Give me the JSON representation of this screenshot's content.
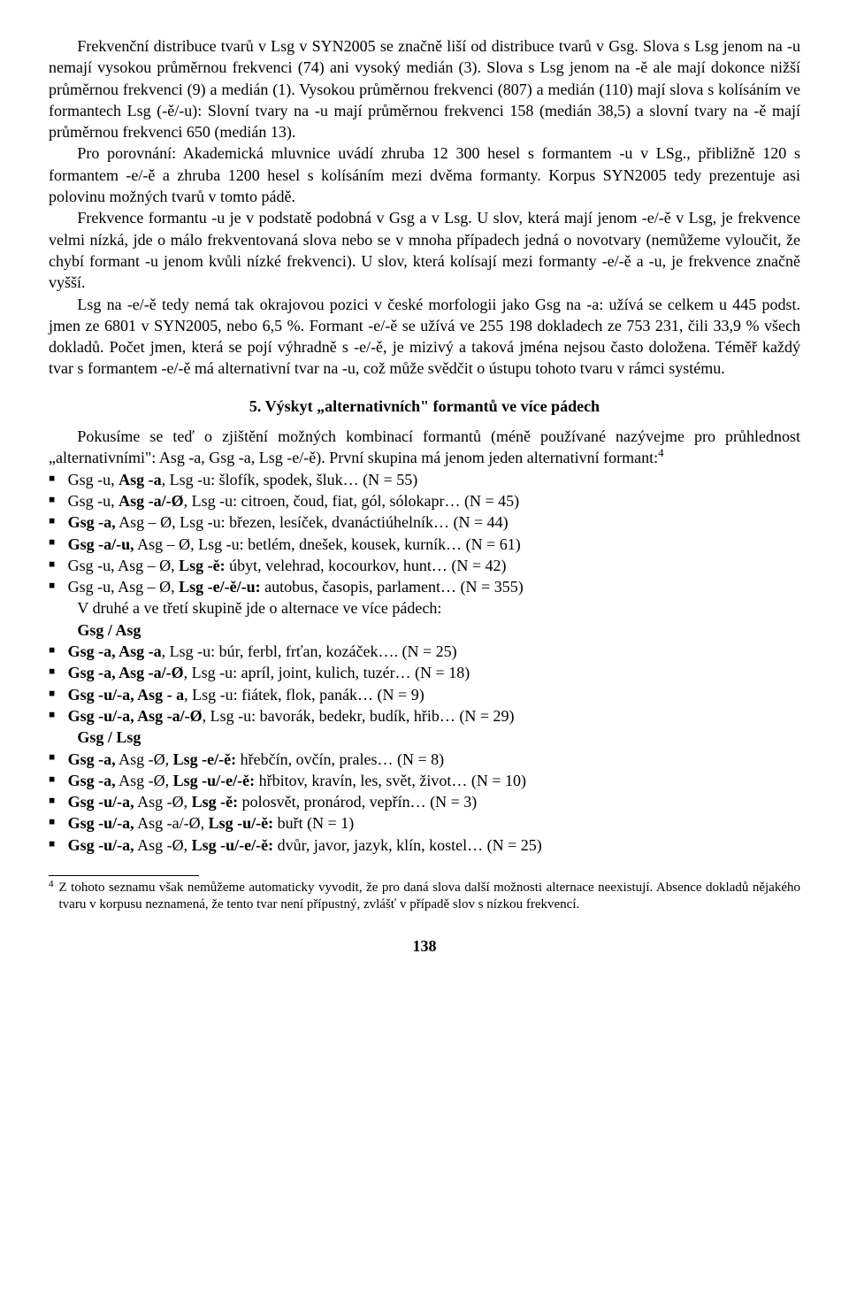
{
  "paragraphs": {
    "p1": "Frekvenční distribuce tvarů v Lsg v SYN2005 se značně liší od distribuce tvarů v Gsg. Slova s Lsg jenom na -u nemají vysokou průměrnou frekvenci (74) ani vysoký medián (3). Slova s Lsg jenom na -ě ale mají dokonce nižší průměrnou frekvenci (9) a medián (1). Vysokou průměrnou frekvenci (807) a medián (110) mají slova s kolísáním ve formantech Lsg (-ě/-u): Slovní tvary na -u mají průměrnou frekvenci 158 (medián 38,5) a slovní tvary na -ě mají průměrnou frekvenci 650 (medián 13).",
    "p2": "Pro porovnání: Akademická mluvnice uvádí zhruba 12 300 hesel s formantem -u v LSg., přibližně 120 s formantem -e/-ě a zhruba 1200 hesel s kolísáním mezi dvěma formanty. Korpus SYN2005 tedy prezentuje asi polovinu možných tvarů v tomto pádě.",
    "p3": "Frekvence formantu -u je v podstatě podobná v Gsg a v Lsg. U slov, která mají jenom -e/-ě v Lsg, je frekvence velmi nízká, jde o málo frekventovaná slova nebo se v mnoha případech jedná o novotvary (nemůžeme vyloučit, že chybí formant -u jenom kvůli nízké frekvenci). U slov, která kolísají mezi formanty -e/-ě a -u, je frekvence značně vyšší.",
    "p4": "Lsg na -e/-ě tedy nemá tak okrajovou pozici v české morfologii jako Gsg na -a: užívá se celkem u 445 podst. jmen ze 6801 v SYN2005, nebo 6,5 %. Formant -e/-ě se užívá ve 255 198 dokladech ze 753 231, čili 33,9 % všech dokladů. Počet jmen, která se pojí výhradně s -e/-ě, je mizivý a taková jména nejsou často doložena. Téměř každý tvar s formantem -e/-ě má alternativní tvar na -u, což může svědčit o ústupu tohoto tvaru v rámci systému.",
    "p5a": "Pokusíme se teď o zjištění možných kombinací formantů (méně používané nazývejme pro průhlednost „alternativními\": Asg -a, Gsg -a, Lsg -e/-ě). První skupina má jenom jeden alternativní formant:",
    "p5sup": "4",
    "sub1": "V druhé a ve třetí skupině jde o alternace ve více pádech:",
    "sub2": "Gsg / Asg",
    "sub3": "Gsg / Lsg"
  },
  "heading": "5. Výskyt „alternativních\" formantů ve více pádech",
  "list1": [
    {
      "bold": "Asg -a",
      "prefix": "Gsg -u, ",
      "suffix": ", Lsg -u: šlofík, spodek, šluk… (N = 55)"
    },
    {
      "bold": "Asg -a/-Ø",
      "prefix": "Gsg -u, ",
      "suffix": ", Lsg -u: citroen, čoud, fiat, gól, sólokapr… (N = 45)"
    },
    {
      "bold": "Gsg -a,",
      "prefix": "",
      "suffix": " Asg – Ø, Lsg -u: březen, lesíček, dvanáctiúhelník… (N = 44)"
    },
    {
      "bold": "Gsg -a/-u,",
      "prefix": "",
      "suffix": " Asg – Ø, Lsg -u: betlém, dnešek, kousek, kurník… (N = 61)"
    },
    {
      "bold": "Lsg -ě:",
      "prefix": "Gsg -u, Asg – Ø, ",
      "suffix": " úbyt, velehrad, kocourkov, hunt… (N = 42)"
    },
    {
      "bold": "Lsg -e/-ě/-u:",
      "prefix": "Gsg -u, Asg – Ø, ",
      "suffix": " autobus, časopis, parlament… (N = 355)"
    }
  ],
  "list2": [
    {
      "bold": "Gsg -a, Asg -a",
      "suffix": ", Lsg -u: búr, ferbl, frťan, kozáček…. (N = 25)"
    },
    {
      "bold": "Gsg -a, Asg -a/-Ø",
      "suffix": ", Lsg -u: apríl, joint, kulich, tuzér… (N = 18)"
    },
    {
      "bold": "Gsg -u/-a, Asg - a",
      "suffix": ", Lsg -u: fiátek, flok, panák… (N = 9)"
    },
    {
      "bold": "Gsg -u/-a, Asg -a/-Ø",
      "suffix": ", Lsg -u: bavorák, bedekr, budík, hřib… (N = 29)"
    }
  ],
  "list3": [
    {
      "bold1": "Gsg -a,",
      "mid": " Asg -Ø, ",
      "bold2": "Lsg -e/-ě:",
      "suffix": " hřebčín, ovčín, prales… (N = 8)"
    },
    {
      "bold1": "Gsg -a,",
      "mid": " Asg -Ø, ",
      "bold2": "Lsg -u/-e/-ě:",
      "suffix": " hřbitov, kravín, les, svět, život… (N = 10)"
    },
    {
      "bold1": "Gsg -u/-a,",
      "mid": " Asg -Ø, ",
      "bold2": "Lsg -ě:",
      "suffix": " polosvět, pronárod, vepřín… (N = 3)"
    },
    {
      "bold1": "Gsg -u/-a,",
      "mid": " Asg -a/-Ø, ",
      "bold2": "Lsg -u/-ě:",
      "suffix": " buřt (N = 1)"
    },
    {
      "bold1": "Gsg -u/-a,",
      "mid": " Asg -Ø, ",
      "bold2": "Lsg -u/-e/-ě:",
      "suffix": " dvůr, javor, jazyk, klín, kostel… (N = 25)"
    }
  ],
  "footnote": {
    "num": "4",
    "text": "Z tohoto seznamu však nemůžeme automaticky vyvodit, že pro daná slova další možnosti alternace neexistují. Absence dokladů nějakého tvaru v korpusu neznamená, že tento tvar není přípustný, zvlášť v případě slov s nízkou frekvencí."
  },
  "pagenum": "138"
}
